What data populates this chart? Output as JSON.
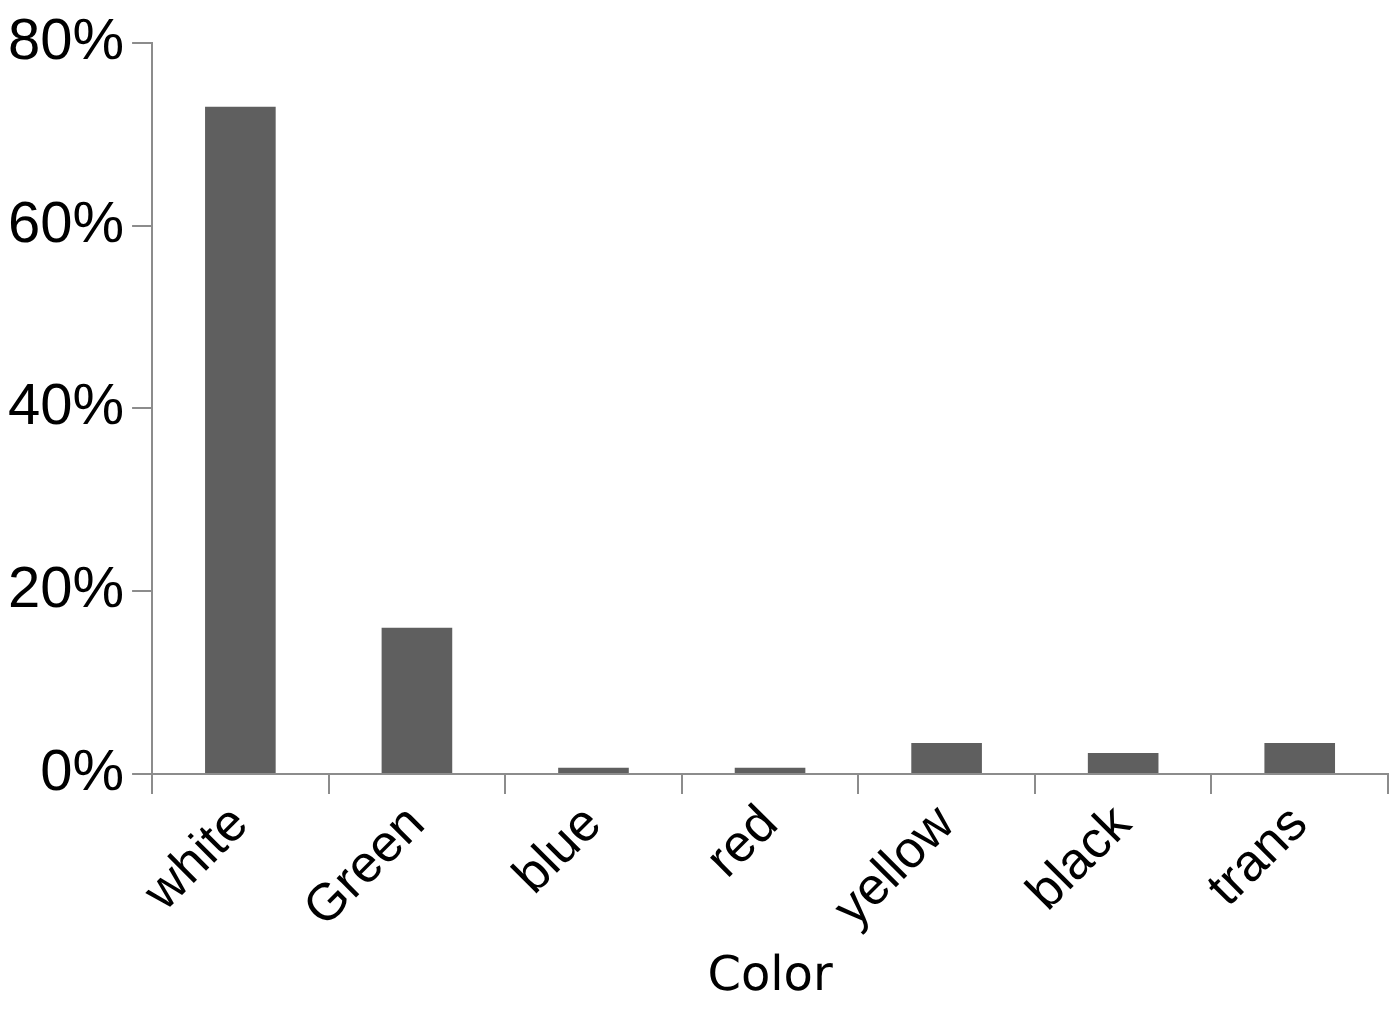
{
  "chart_data": {
    "type": "bar",
    "xlabel": "Color",
    "categories": [
      "white",
      "Green",
      "blue",
      "red",
      "yellow",
      "black",
      "trans"
    ],
    "values": [
      73,
      16,
      0.7,
      0.7,
      3.4,
      2.3,
      3.4
    ],
    "color": "#5f5f5f",
    "ylim": [
      0,
      80
    ],
    "yticks": [
      {
        "value": 0,
        "label": "0%"
      },
      {
        "value": 20,
        "label": "20%"
      },
      {
        "value": 40,
        "label": "40%"
      },
      {
        "value": 60,
        "label": "60%"
      },
      {
        "value": 80,
        "label": "80%"
      }
    ],
    "grid": false,
    "legend": false
  }
}
